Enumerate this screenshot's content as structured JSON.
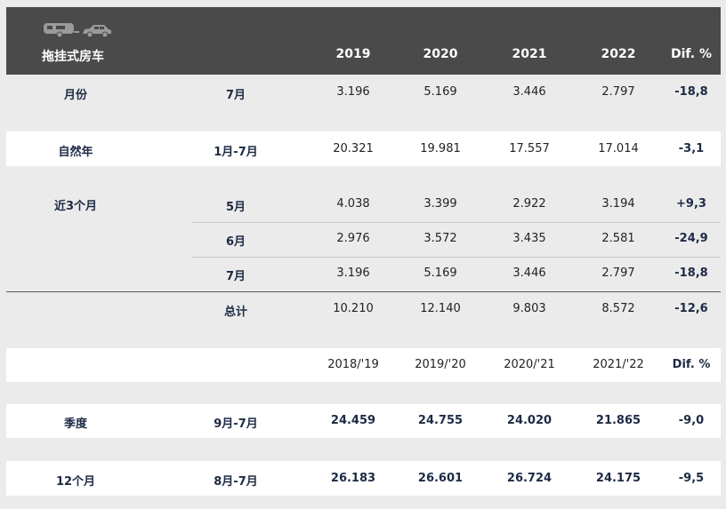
{
  "header": {
    "title": "拖挂式房车",
    "years": [
      "2019",
      "2020",
      "2021",
      "2022"
    ],
    "dif_label": "Dif. %",
    "icons": [
      "caravan-icon",
      "car-icon"
    ]
  },
  "rows": {
    "month": {
      "label": "月份",
      "period": "7月",
      "values": [
        "3.196",
        "5.169",
        "3.446",
        "2.797"
      ],
      "dif": "-18,8"
    },
    "natural_year": {
      "label": "自然年",
      "period": "1月-7月",
      "values": [
        "20.321",
        "19.981",
        "17.557",
        "17.014"
      ],
      "dif": "-3,1"
    },
    "last3": {
      "label": "近3个月",
      "months": [
        {
          "period": "5月",
          "values": [
            "4.038",
            "3.399",
            "2.922",
            "3.194"
          ],
          "dif": "+9,3"
        },
        {
          "period": "6月",
          "values": [
            "2.976",
            "3.572",
            "3.435",
            "2.581"
          ],
          "dif": "-24,9"
        },
        {
          "period": "7月",
          "values": [
            "3.196",
            "5.169",
            "3.446",
            "2.797"
          ],
          "dif": "-18,8"
        }
      ],
      "total": {
        "period": "总计",
        "values": [
          "10.210",
          "12.140",
          "9.803",
          "8.572"
        ],
        "dif": "-12,6"
      }
    }
  },
  "season_header": {
    "years": [
      "2018/'19",
      "2019/'20",
      "2020/'21",
      "2021/'22"
    ],
    "dif_label": "Dif. %"
  },
  "season_rows": {
    "season": {
      "label": "季度",
      "period": "9月-7月",
      "values": [
        "24.459",
        "24.755",
        "24.020",
        "21.865"
      ],
      "dif": "-9,0"
    },
    "twelve": {
      "label": "12个月",
      "period": "8月-7月",
      "values": [
        "26.183",
        "26.601",
        "26.724",
        "24.175"
      ],
      "dif": "-9,5"
    }
  },
  "colors": {
    "header_bg": "#4a4a4a",
    "page_bg": "#ebebeb",
    "band_bg": "#ffffff",
    "text": "#1d2a44"
  }
}
